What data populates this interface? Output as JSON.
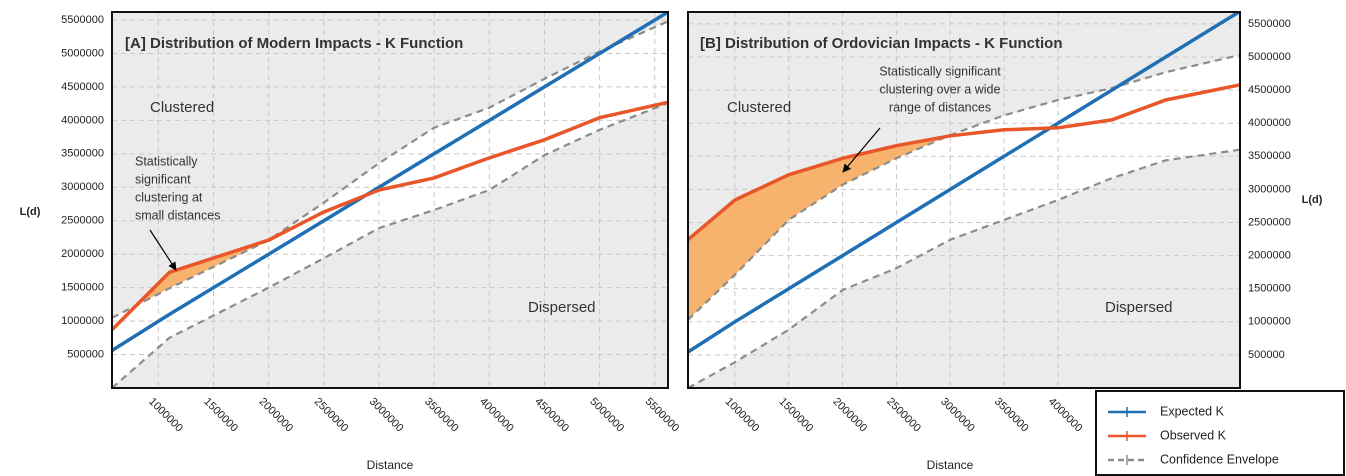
{
  "chart_data": [
    {
      "type": "line",
      "title": "[A] Distribution of Modern Impacts - K Function",
      "xlabel": "Distance",
      "ylabel": "L(d)",
      "x": [
        580000,
        1100000,
        2000000,
        2500000,
        3000000,
        3500000,
        4000000,
        4500000,
        5000000,
        5620000
      ],
      "series": [
        {
          "color": "#1f6fb5",
          "values": [
            560000,
            1100000,
            2000000,
            2500000,
            3000000,
            3500000,
            4000000,
            4500000,
            5000000,
            5620000
          ]
        },
        {
          "color": "#e8562a",
          "values": [
            870000,
            1730000,
            2210000,
            2630000,
            2960000,
            3140000,
            3440000,
            3710000,
            4040000,
            4270000
          ]
        }
      ],
      "envelope": {
        "color": "#8c8c8c",
        "upper": [
          1050000,
          1490000,
          2210000,
          2770000,
          3360000,
          3890000,
          4190000,
          4620000,
          5030000,
          5480000
        ],
        "lower": [
          0,
          750000,
          1500000,
          1940000,
          2390000,
          2660000,
          2960000,
          3480000,
          3860000,
          4260000
        ]
      },
      "significant_color": "#f7b26e",
      "annotations": [
        {
          "text": "Clustered"
        },
        {
          "text": "Dispersed"
        },
        {
          "lines": [
            "Statistically",
            "significant",
            "clustering at",
            "small distances"
          ]
        }
      ],
      "xlim": [
        580000,
        5620000
      ],
      "ylim": [
        0,
        5620000
      ],
      "xticks": [
        1000000,
        1500000,
        2000000,
        2500000,
        3000000,
        3500000,
        4000000,
        4500000,
        5000000,
        5500000
      ],
      "yticks": [
        500000,
        1000000,
        1500000,
        2000000,
        2500000,
        3000000,
        3500000,
        4000000,
        4500000,
        5000000,
        5500000
      ],
      "grid": true
    },
    {
      "type": "line",
      "title": "[B] Distribution of Ordovician Impacts - K Function",
      "xlabel": "Distance",
      "ylabel": "L(d)",
      "x": [
        565000,
        1000000,
        1500000,
        2000000,
        2500000,
        3000000,
        3500000,
        4000000,
        4500000,
        5000000,
        5690000
      ],
      "series": [
        {
          "name": "Expected K",
          "color": "#1f6fb5",
          "values": [
            544000,
            1000000,
            1500000,
            2000000,
            2500000,
            3000000,
            3500000,
            4000000,
            4500000,
            5000000,
            5690000
          ]
        },
        {
          "name": "Observed K",
          "color": "#e8562a",
          "values": [
            2240000,
            2840000,
            3220000,
            3470000,
            3660000,
            3810000,
            3900000,
            3930000,
            4050000,
            4350000,
            4580000
          ]
        }
      ],
      "envelope": {
        "name": "Confidence Envelope",
        "color": "#8c8c8c",
        "upper": [
          1030000,
          1710000,
          2540000,
          3070000,
          3470000,
          3820000,
          4120000,
          4350000,
          4530000,
          4770000,
          5030000
        ],
        "lower": [
          0,
          390000,
          880000,
          1480000,
          1810000,
          2240000,
          2540000,
          2840000,
          3170000,
          3440000,
          3600000
        ]
      },
      "significant_color": "#f7b26e",
      "annotations": [
        {
          "text": "Clustered"
        },
        {
          "text": "Dispersed"
        },
        {
          "lines": [
            "Statistically significant",
            "clustering over a wide",
            "range of distances"
          ]
        }
      ],
      "xlim": [
        565000,
        5690000
      ],
      "ylim": [
        0,
        5680000
      ],
      "xticks": [
        1000000,
        1500000,
        2000000,
        2500000,
        3000000,
        3500000,
        4000000
      ],
      "yticks": [
        500000,
        1000000,
        1500000,
        2000000,
        2500000,
        3000000,
        3500000,
        4000000,
        4500000,
        5000000,
        5500000
      ],
      "grid": true
    }
  ]
}
